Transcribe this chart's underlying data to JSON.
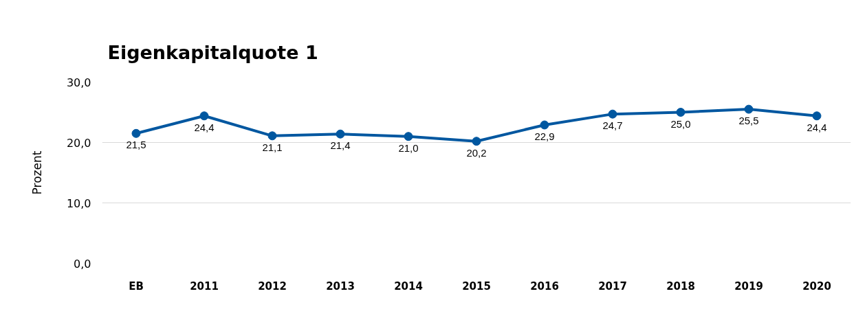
{
  "chart_data": {
    "type": "line",
    "title": "Eigenkapitalquote 1",
    "ylabel": "Prozent",
    "categories": [
      "EB",
      "2011",
      "2012",
      "2013",
      "2014",
      "2015",
      "2016",
      "2017",
      "2018",
      "2019",
      "2020"
    ],
    "series": [
      {
        "color": "#0057a0",
        "values": [
          21.5,
          24.4,
          21.1,
          21.4,
          21.0,
          20.2,
          22.9,
          24.7,
          25.0,
          25.5,
          24.4
        ],
        "value_labels": [
          "21,5",
          "24,4",
          "21,1",
          "21,4",
          "21,0",
          "20,2",
          "22,9",
          "24,7",
          "25,0",
          "25,5",
          "24,4"
        ]
      }
    ],
    "ylim": [
      0,
      30
    ],
    "yticks": [
      {
        "value": 0,
        "label": "0,0"
      },
      {
        "value": 10,
        "label": "10,0"
      },
      {
        "value": 20,
        "label": "20,0"
      },
      {
        "value": 30,
        "label": "30,0"
      }
    ],
    "grid": "y",
    "marker": "circle",
    "line_style": "solid"
  }
}
